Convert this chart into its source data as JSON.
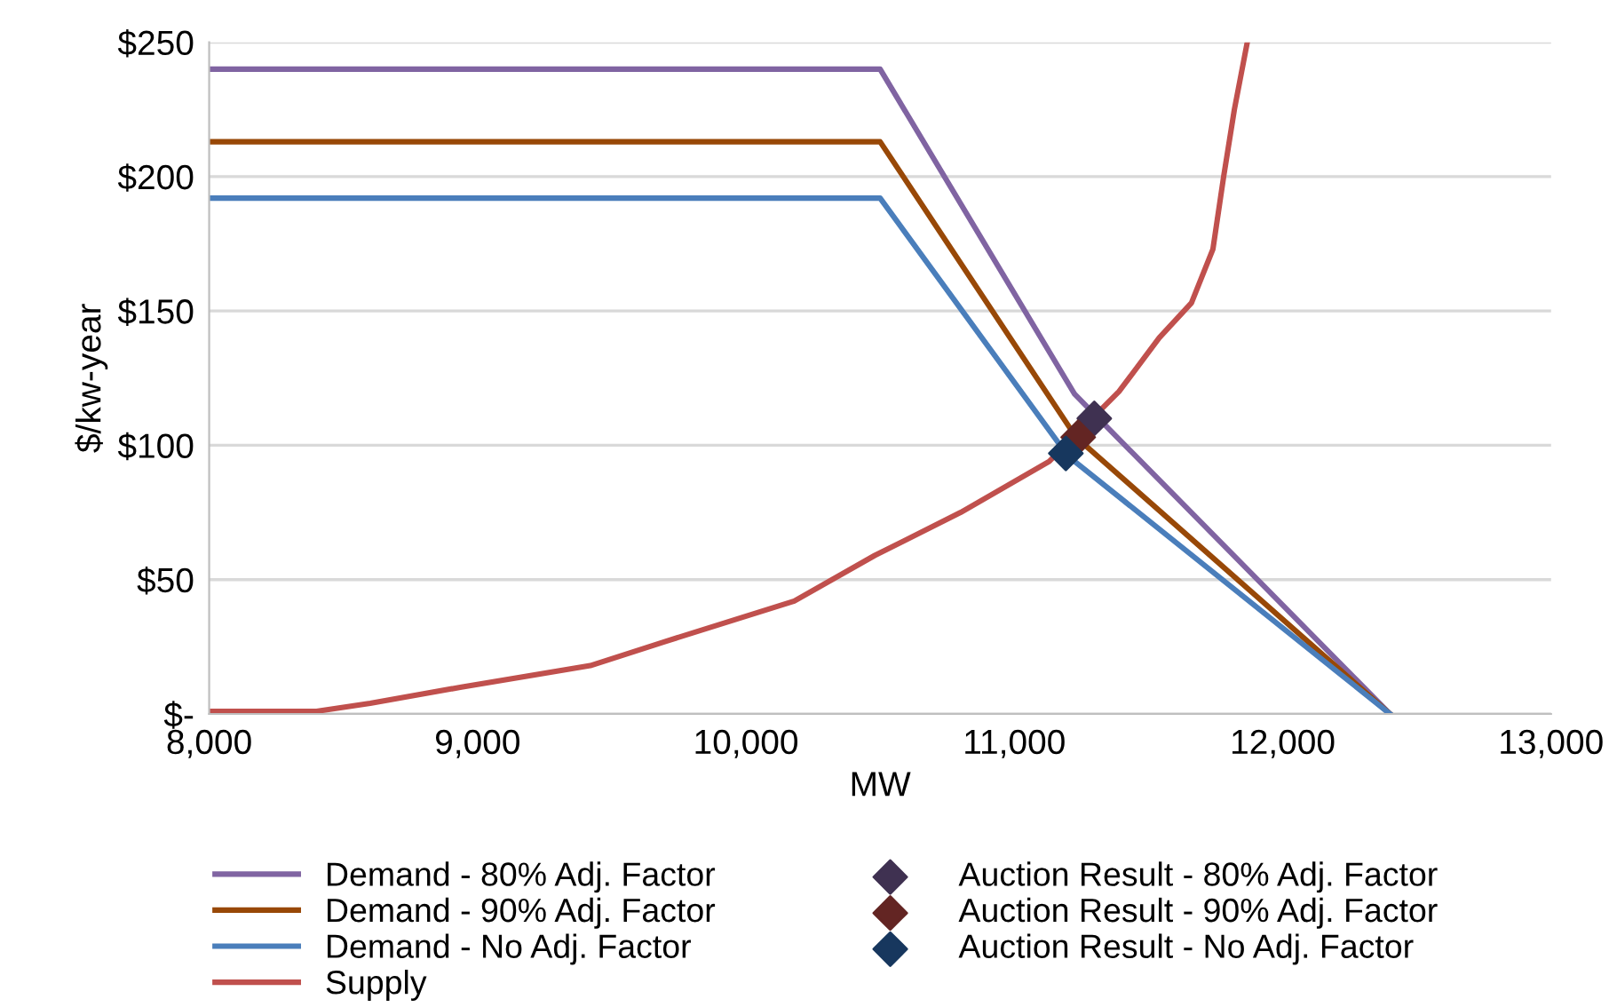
{
  "chart_data": {
    "type": "line",
    "xlabel": "MW",
    "ylabel": "$/kw-year",
    "xlim": [
      8000,
      13000
    ],
    "xticks": [
      {
        "value": 8000,
        "label": "8,000"
      },
      {
        "value": 9000,
        "label": "9,000"
      },
      {
        "value": 10000,
        "label": "10,000"
      },
      {
        "value": 11000,
        "label": "11,000"
      },
      {
        "value": 12000,
        "label": "12,000"
      },
      {
        "value": 13000,
        "label": "13,000"
      }
    ],
    "ylim": [
      0,
      250
    ],
    "yticks": [
      {
        "value": 0,
        "label": "$-"
      },
      {
        "value": 50,
        "label": "$50"
      },
      {
        "value": 100,
        "label": "$100"
      },
      {
        "value": 150,
        "label": "$150"
      },
      {
        "value": 200,
        "label": "$200"
      },
      {
        "value": 250,
        "label": "$250"
      }
    ],
    "grid": "y",
    "legend": "bottom",
    "marker": "none",
    "line_style": "solid",
    "series": [
      {
        "name": "Demand - 80% Adj. Factor",
        "color": "#8064a2",
        "x": [
          8000,
          10500,
          11225,
          12400
        ],
        "values": [
          240,
          240,
          119,
          0
        ]
      },
      {
        "name": "Demand - 90% Adj. Factor",
        "color": "#984807",
        "x": [
          8000,
          10500,
          11230,
          12400
        ],
        "values": [
          213,
          213,
          103,
          0
        ]
      },
      {
        "name": "Demand - No Adj. Factor",
        "color": "#4a7ebb",
        "x": [
          8000,
          10500,
          11200,
          12400
        ],
        "values": [
          192,
          192,
          96,
          0
        ]
      },
      {
        "name": "Supply",
        "color": "#c0504d",
        "x": [
          8000,
          8400,
          8600,
          8940,
          9420,
          9700,
          10180,
          10480,
          10800,
          11130,
          11390,
          11540,
          11660,
          11740,
          11780,
          11820,
          11868
        ],
        "values": [
          1,
          1,
          4,
          10,
          18,
          27,
          42,
          59,
          75,
          94,
          120,
          140,
          153,
          173,
          200,
          225,
          250
        ]
      },
      {
        "name": "Auction Result - 80% Adj. Factor",
        "type": "scatter",
        "marker": "diamond",
        "color": "#3f3151",
        "x": [
          11298
        ],
        "values": [
          110
        ]
      },
      {
        "name": "Auction Result - 90% Adj. Factor",
        "type": "scatter",
        "marker": "diamond",
        "color": "#632523",
        "x": [
          11238
        ],
        "values": [
          103
        ]
      },
      {
        "name": "Auction Result - No Adj. Factor",
        "type": "scatter",
        "marker": "diamond",
        "color": "#17375e",
        "x": [
          11192
        ],
        "values": [
          97
        ]
      }
    ]
  }
}
